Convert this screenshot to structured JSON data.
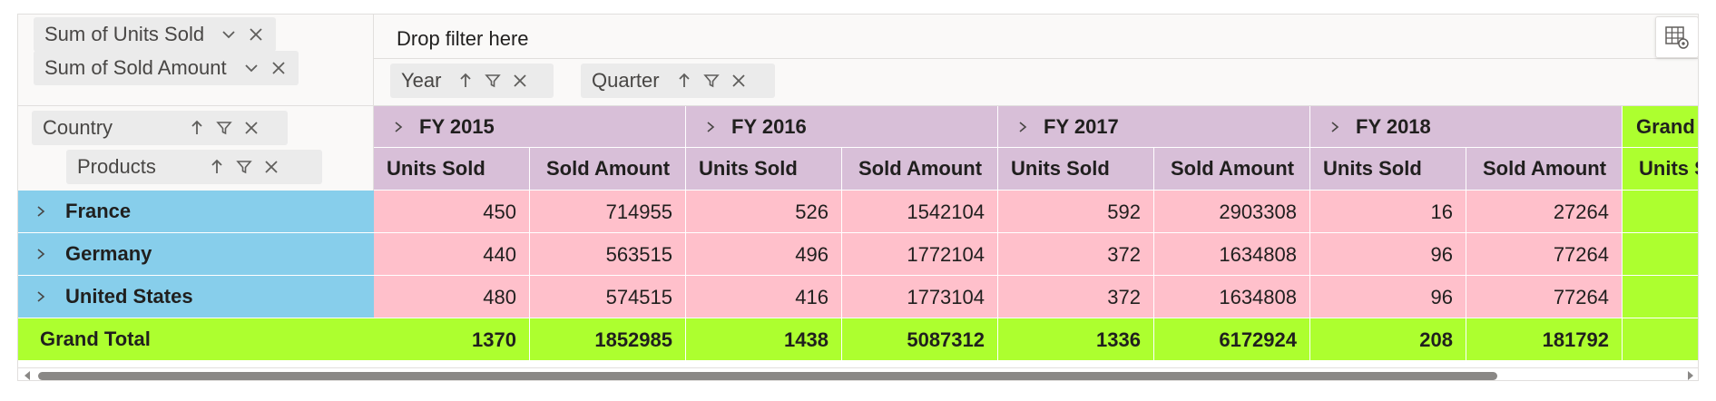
{
  "values_zone": {
    "pills": [
      {
        "label": "Sum of Units Sold"
      },
      {
        "label": "Sum of Sold Amount"
      }
    ]
  },
  "filter_zone": {
    "drop_text": "Drop filter here"
  },
  "columns_zone": {
    "pills": [
      {
        "label": "Year"
      },
      {
        "label": "Quarter"
      }
    ]
  },
  "rows_zone": {
    "pills": [
      {
        "label": "Country"
      },
      {
        "label": "Products"
      }
    ]
  },
  "icons": {
    "settings": "table-settings-icon",
    "sort": "sort-ascending-arrow-icon",
    "filter": "filter-funnel-icon",
    "remove": "close-icon",
    "dropdown": "chevron-down-icon",
    "expand": "chevron-right-icon"
  },
  "colors": {
    "header_bg": "#d8bfd8",
    "row_header_bg": "#87ceeb",
    "value_cell_bg": "#ffc0cb",
    "grand_total_bg": "#adff2f"
  },
  "grid": {
    "years": [
      "FY 2015",
      "FY 2016",
      "FY 2017",
      "FY 2018"
    ],
    "grand_total_header": "Grand Total",
    "measure_headers": [
      "Units Sold",
      "Sold Amount"
    ],
    "grand_total_measure": "Units Sold",
    "rows": [
      {
        "label": "France",
        "values": [
          "450",
          "714955",
          "526",
          "1542104",
          "592",
          "2903308",
          "16",
          "27264"
        ]
      },
      {
        "label": "Germany",
        "values": [
          "440",
          "563515",
          "496",
          "1772104",
          "372",
          "1634808",
          "96",
          "77264"
        ]
      },
      {
        "label": "United States",
        "values": [
          "480",
          "574515",
          "416",
          "1773104",
          "372",
          "1634808",
          "96",
          "77264"
        ]
      }
    ],
    "grand_total_row": {
      "label": "Grand Total",
      "values": [
        "1370",
        "1852985",
        "1438",
        "5087312",
        "1336",
        "6172924",
        "208",
        "181792"
      ]
    }
  }
}
